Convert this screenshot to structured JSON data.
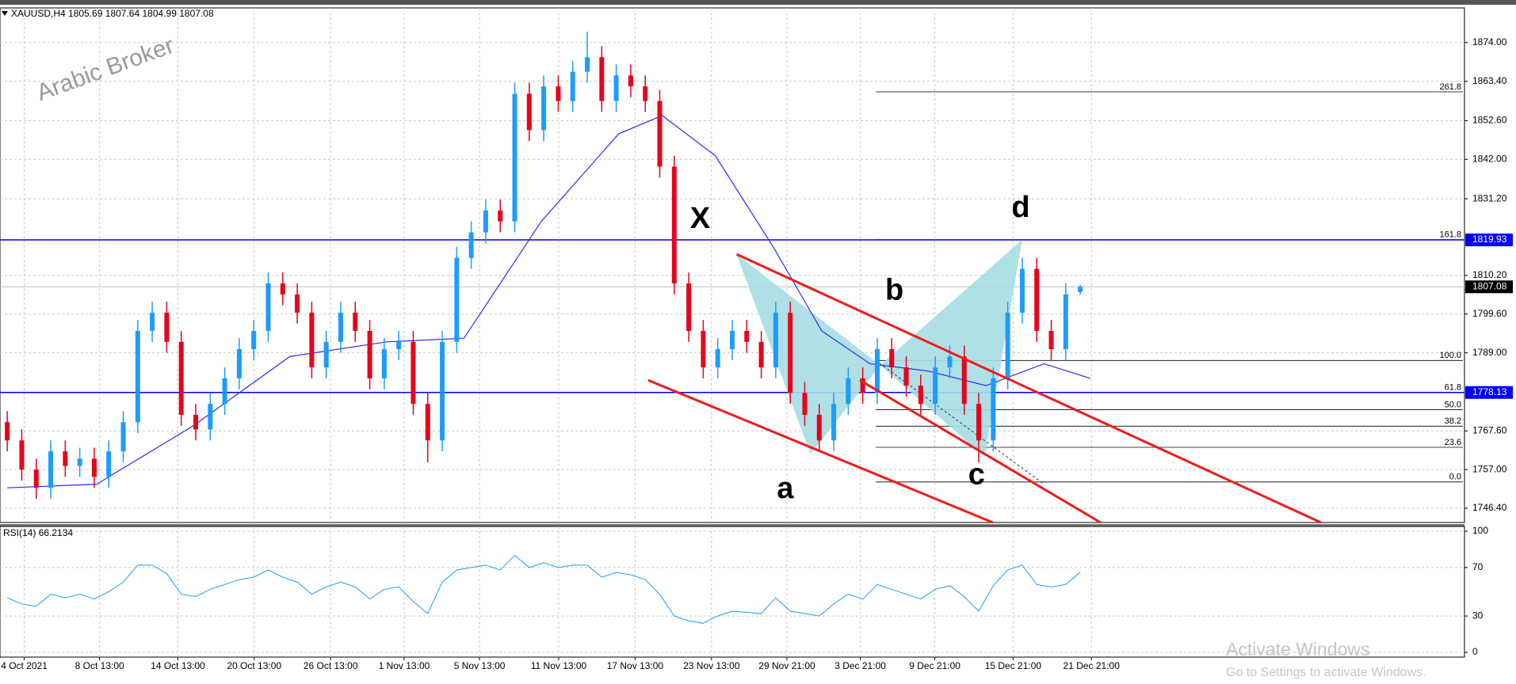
{
  "chart_data": {
    "type": "candlestick",
    "symbol": "XAUUSD,H4",
    "watermark": "Arabic Broker",
    "open": [
      1770,
      1765,
      1757,
      1752,
      1762,
      1758,
      1760,
      1755,
      1762,
      1770,
      1795,
      1800,
      1792,
      1772,
      1768,
      1775,
      1782,
      1790,
      1795,
      1808,
      1805,
      1800,
      1785,
      1792,
      1800,
      1795,
      1782,
      1790,
      1792,
      1775,
      1765,
      1792,
      1815,
      1822,
      1828,
      1825,
      1860,
      1850,
      1862,
      1858,
      1866,
      1870,
      1858,
      1865,
      1862,
      1858,
      1840,
      1808,
      1795,
      1785,
      1790,
      1795,
      1792,
      1785,
      1800,
      1778,
      1772,
      1765,
      1775,
      1782,
      1778,
      1790,
      1785,
      1780,
      1775,
      1785,
      1788,
      1775,
      1765,
      1782,
      1800,
      1812,
      1795,
      1790,
      1805.69
    ],
    "high": [
      1773,
      1768,
      1760,
      1765,
      1765,
      1763,
      1763,
      1765,
      1773,
      1798,
      1803,
      1803,
      1795,
      1775,
      1778,
      1785,
      1793,
      1798,
      1811,
      1811,
      1808,
      1803,
      1795,
      1803,
      1803,
      1798,
      1793,
      1795,
      1795,
      1778,
      1795,
      1818,
      1825,
      1831,
      1831,
      1863,
      1863,
      1865,
      1865,
      1869,
      1877,
      1873,
      1868,
      1868,
      1865,
      1861,
      1843,
      1811,
      1798,
      1793,
      1798,
      1798,
      1795,
      1803,
      1803,
      1781,
      1775,
      1778,
      1785,
      1785,
      1793,
      1793,
      1788,
      1783,
      1788,
      1791,
      1791,
      1778,
      1785,
      1803,
      1815,
      1815,
      1798,
      1808,
      1807.64
    ],
    "low": [
      1762,
      1754,
      1749,
      1749,
      1755,
      1755,
      1752,
      1752,
      1759,
      1767,
      1792,
      1789,
      1769,
      1765,
      1765,
      1772,
      1779,
      1787,
      1792,
      1802,
      1797,
      1782,
      1782,
      1789,
      1792,
      1779,
      1779,
      1787,
      1772,
      1759,
      1762,
      1789,
      1812,
      1819,
      1822,
      1822,
      1847,
      1847,
      1855,
      1855,
      1863,
      1855,
      1855,
      1859,
      1855,
      1837,
      1805,
      1792,
      1782,
      1782,
      1787,
      1789,
      1782,
      1782,
      1775,
      1769,
      1762,
      1762,
      1772,
      1775,
      1775,
      1782,
      1777,
      1772,
      1772,
      1782,
      1772,
      1759,
      1762,
      1779,
      1797,
      1792,
      1787,
      1787,
      1804.99
    ],
    "close": [
      1765,
      1757,
      1752,
      1762,
      1758,
      1760,
      1755,
      1762,
      1770,
      1795,
      1800,
      1792,
      1772,
      1768,
      1775,
      1782,
      1790,
      1795,
      1808,
      1805,
      1800,
      1785,
      1792,
      1800,
      1795,
      1782,
      1790,
      1792,
      1775,
      1765,
      1792,
      1815,
      1822,
      1828,
      1825,
      1860,
      1850,
      1862,
      1858,
      1866,
      1870,
      1858,
      1865,
      1862,
      1858,
      1840,
      1808,
      1795,
      1785,
      1790,
      1795,
      1792,
      1785,
      1800,
      1778,
      1772,
      1765,
      1775,
      1782,
      1778,
      1790,
      1785,
      1780,
      1775,
      1785,
      1788,
      1775,
      1765,
      1782,
      1800,
      1812,
      1795,
      1790,
      1805,
      1807.08
    ],
    "up_color": "#1e9bff",
    "down_color": "#e8001c",
    "xlim": [
      -0.5,
      100.5
    ],
    "ylim": [
      1742.5,
      1883.5
    ],
    "yticks": [
      {
        "value": 1874,
        "label": "1874.00"
      },
      {
        "value": 1863.4,
        "label": "1863.40"
      },
      {
        "value": 1852.6,
        "label": "1852.60"
      },
      {
        "value": 1842,
        "label": "1842.00"
      },
      {
        "value": 1831.2,
        "label": "1831.20"
      },
      {
        "value": 1810.2,
        "label": "1810.20"
      },
      {
        "value": 1799.6,
        "label": "1799.60"
      },
      {
        "value": 1789,
        "label": "1789.00"
      },
      {
        "value": 1767.6,
        "label": "1767.60"
      },
      {
        "value": 1757,
        "label": "1757.00"
      },
      {
        "value": 1746.4,
        "label": "1746.40"
      }
    ],
    "xticks": [
      {
        "value": 1.17,
        "label": "4 Oct 2021"
      },
      {
        "value": 6.37,
        "label": "8 Oct 13:00"
      },
      {
        "value": 11.77,
        "label": "14 Oct 13:00"
      },
      {
        "value": 17.03,
        "label": "20 Oct 13:00"
      },
      {
        "value": 22.3,
        "label": "26 Oct 13:00"
      },
      {
        "value": 27.37,
        "label": "1 Nov 13:00"
      },
      {
        "value": 32.57,
        "label": "5 Nov 13:00"
      },
      {
        "value": 38.03,
        "label": "11 Nov 13:00"
      },
      {
        "value": 43.3,
        "label": "17 Nov 13:00"
      },
      {
        "value": 48.57,
        "label": "23 Nov 13:00"
      },
      {
        "value": 53.77,
        "label": "29 Nov 21:00"
      },
      {
        "value": 58.83,
        "label": "3 Dec 21:00"
      },
      {
        "value": 63.97,
        "label": "9 Dec 21:00"
      },
      {
        "value": 69.37,
        "label": "15 Dec 21:00"
      },
      {
        "value": 74.77,
        "label": "21 Dec 21:00"
      }
    ],
    "grid": true,
    "ma": {
      "color": "#2a2aff",
      "x": [
        0,
        6.17,
        12.83,
        19.5,
        26.17,
        31.5,
        36.83,
        42.17,
        45.17,
        48.83,
        52.83,
        56.17,
        59.5,
        63.5,
        67.5,
        71.5,
        74.7
      ],
      "values": [
        1752,
        1753,
        1769,
        1788,
        1792,
        1793,
        1825,
        1849,
        1854,
        1843,
        1818,
        1795,
        1786,
        1784,
        1780,
        1786,
        1782
      ]
    },
    "hlines": [
      {
        "price": 1819.93,
        "color": "#0000ff"
      },
      {
        "price": 1778.13,
        "color": "#0000ff"
      }
    ],
    "fib": {
      "x0": 59.9,
      "labels": [
        "261.8",
        "161.8",
        "100.0",
        "61.8",
        "50.0",
        "38.2",
        "23.6",
        "0.0"
      ],
      "prices": [
        1860.5,
        1820,
        1786.9,
        1778.2,
        1773.4,
        1768.9,
        1763.1,
        1753.6
      ]
    },
    "pattern": {
      "labels": [
        "X",
        "a",
        "b",
        "c",
        "d"
      ],
      "x": [
        50.3,
        55.4,
        60.2,
        67.4,
        70
      ],
      "y": [
        1816,
        1761.2,
        1785.6,
        1760.4,
        1820
      ],
      "color": "#a6dde3"
    },
    "trendlines": [
      {
        "x": [
          50.3,
          90.6
        ],
        "y": [
          1816,
          1742.5
        ]
      },
      {
        "x": [
          44.2,
          67.97
        ],
        "y": [
          1781.5,
          1742.5
        ]
      },
      {
        "x": [
          58.8,
          75.4
        ],
        "y": [
          1781.5,
          1742.5
        ]
      }
    ],
    "dashed_line": {
      "x": [
        59.9,
        71.4
      ],
      "y": [
        1786.9,
        1753.3
      ]
    },
    "rsi": {
      "name": "RSI(14)",
      "color": "#1e9bff",
      "ylim": [
        -3.9,
        103.9
      ],
      "yticks": [
        0,
        30,
        70,
        100
      ],
      "values": [
        45,
        40,
        38,
        48,
        45,
        48,
        44,
        50,
        58,
        72,
        72,
        65,
        48,
        46,
        52,
        56,
        60,
        62,
        68,
        62,
        58,
        48,
        54,
        58,
        54,
        44,
        52,
        54,
        42,
        32,
        58,
        68,
        70,
        72,
        68,
        80,
        70,
        74,
        70,
        72,
        72,
        62,
        66,
        64,
        60,
        48,
        30,
        26,
        24,
        30,
        34,
        33,
        32,
        45,
        34,
        32,
        30,
        40,
        48,
        44,
        56,
        52,
        48,
        44,
        52,
        55,
        46,
        34,
        55,
        68,
        72,
        56,
        54,
        56,
        66.2134
      ]
    }
  },
  "overlay": {
    "activate_title": "Activate Windows",
    "activate_text": "Go to Settings to activate Windows."
  }
}
